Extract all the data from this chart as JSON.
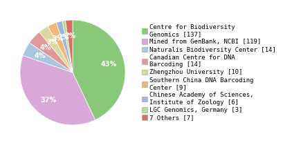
{
  "labels": [
    "Centre for Biodiversity\nGenomics [137]",
    "Mined from GenBank, NCBI [119]",
    "Naturalis Biodiversity Center [14]",
    "Canadian Centre for DNA\nBarcoding [14]",
    "Zhengzhou University [10]",
    "Southern China DNA Barcoding\nCenter [9]",
    "Chinese Academy of Sciences,\nInstitute of Zoology [6]",
    "LGC Genomics, Germany [3]",
    "7 Others [7]"
  ],
  "values": [
    137,
    119,
    14,
    14,
    10,
    9,
    6,
    3,
    7
  ],
  "colors": [
    "#88c878",
    "#d8a8d8",
    "#a8c8e0",
    "#e09898",
    "#d8d8a0",
    "#f0b878",
    "#a0b8d8",
    "#b8d8a0",
    "#d87060"
  ],
  "legend_fontsize": 6.5,
  "pct_fontsize": 7,
  "background_color": "#ffffff"
}
